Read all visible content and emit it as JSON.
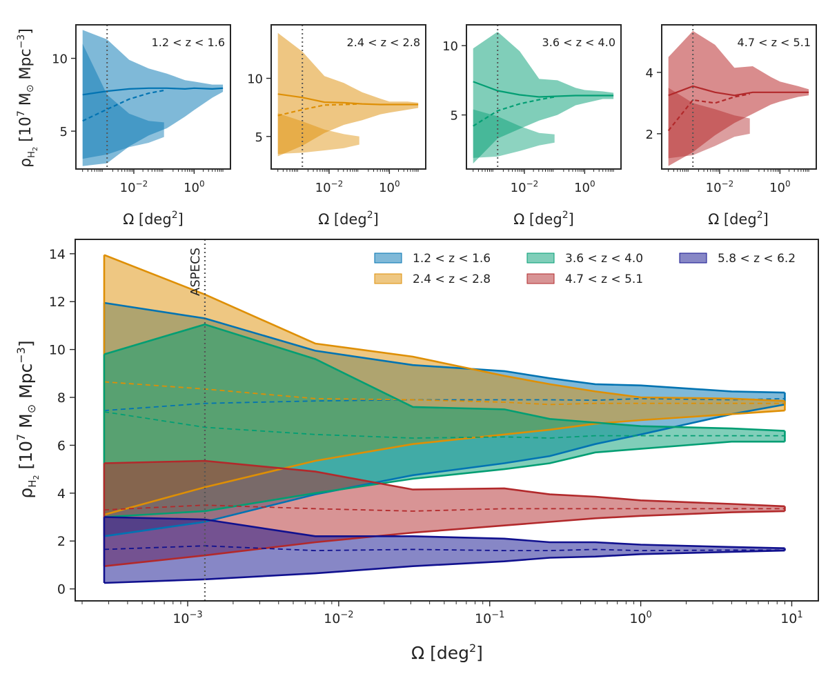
{
  "figure": {
    "shared": {
      "ylabel_main": "ρ",
      "ylabel_sub": "H",
      "ylabel_sub2": "2",
      "ylabel_rest": " [10",
      "ylabel_exp": "7",
      "ylabel_unit": " M",
      "ylabel_odot": "⊙",
      "ylabel_mpc": " Mpc",
      "ylabel_exp2": "−3",
      "ylabel_close": "]",
      "xlabel_main": "Ω [deg",
      "xlabel_exp": "2",
      "xlabel_close": "]",
      "tick_base": "10",
      "reference_label": "ASPECS"
    },
    "colors": {
      "z1": "#0173b2",
      "z1_fill": "#7fb9d8",
      "z2": "#de8f05",
      "z2_fill": "#eec682",
      "z3": "#029e73",
      "z3_fill": "#80ceb9",
      "z4": "#b2292b",
      "z4_fill": "#d98c8d",
      "z5": "#10108e",
      "z5_fill": "#7f7fc6",
      "reference_line": "#555555"
    }
  },
  "chart_data": [
    {
      "type": "area",
      "panel": "main",
      "title": "",
      "xlabel": "Ω [deg²]",
      "ylabel": "ρH2 [10^7 M⊙ Mpc^-3]",
      "xscale": "log",
      "xlim": [
        0.00018,
        15
      ],
      "ylim": [
        -0.5,
        14.6
      ],
      "xticks": [
        -3,
        -2,
        -1,
        0,
        1
      ],
      "yticks": [
        0,
        2,
        4,
        6,
        8,
        10,
        12,
        14
      ],
      "legend_position": "top-right",
      "reference_x": 0.0013,
      "reference_label": "ASPECS",
      "x": [
        0.00028,
        0.0013,
        0.007,
        0.031,
        0.125,
        0.25,
        0.5,
        1.0,
        4.0,
        9.0
      ],
      "series": [
        {
          "name": "1.2 < z < 1.6",
          "color_key": "z1",
          "upper": [
            11.95,
            11.3,
            9.95,
            9.35,
            9.1,
            8.8,
            8.55,
            8.5,
            8.25,
            8.2
          ],
          "lower": [
            2.2,
            2.8,
            3.95,
            4.75,
            5.25,
            5.55,
            6.05,
            6.45,
            7.3,
            7.7
          ],
          "median": [
            7.45,
            7.75,
            7.85,
            7.9,
            7.9,
            7.9,
            7.88,
            7.95,
            7.9,
            7.95
          ]
        },
        {
          "name": "2.4 < z < 2.8",
          "color_key": "z2",
          "upper": [
            13.95,
            12.3,
            10.25,
            9.7,
            8.9,
            8.55,
            8.25,
            8.0,
            7.95,
            7.85
          ],
          "lower": [
            3.1,
            4.25,
            5.35,
            6.05,
            6.45,
            6.65,
            6.9,
            7.05,
            7.3,
            7.45
          ],
          "median": [
            8.65,
            8.35,
            7.95,
            7.9,
            7.8,
            7.7,
            7.75,
            7.75,
            7.75,
            7.75
          ]
        },
        {
          "name": "3.6 < z < 4.0",
          "color_key": "z3",
          "upper": [
            9.8,
            11.05,
            9.6,
            7.6,
            7.5,
            7.1,
            6.95,
            6.8,
            6.7,
            6.6
          ],
          "lower": [
            3.0,
            3.25,
            4.0,
            4.6,
            5.0,
            5.25,
            5.7,
            5.85,
            6.15,
            6.15
          ],
          "median": [
            7.4,
            6.75,
            6.45,
            6.3,
            6.35,
            6.3,
            6.4,
            6.4,
            6.4,
            6.4
          ]
        },
        {
          "name": "4.7 < z < 5.1",
          "color_key": "z4",
          "upper": [
            5.25,
            5.35,
            4.9,
            4.15,
            4.2,
            3.95,
            3.85,
            3.7,
            3.55,
            3.45
          ],
          "lower": [
            0.95,
            1.4,
            1.95,
            2.35,
            2.65,
            2.8,
            2.95,
            3.05,
            3.2,
            3.25
          ],
          "median": [
            3.3,
            3.5,
            3.35,
            3.25,
            3.35,
            3.35,
            3.35,
            3.35,
            3.35,
            3.35
          ]
        },
        {
          "name": "5.8 < z < 6.2",
          "color_key": "z5",
          "upper": [
            3.0,
            2.9,
            2.2,
            2.2,
            2.1,
            1.95,
            1.95,
            1.85,
            1.75,
            1.7
          ],
          "lower": [
            0.25,
            0.4,
            0.65,
            0.95,
            1.15,
            1.3,
            1.35,
            1.45,
            1.55,
            1.6
          ],
          "median": [
            1.65,
            1.8,
            1.6,
            1.65,
            1.6,
            1.6,
            1.65,
            1.6,
            1.62,
            1.62
          ]
        }
      ]
    },
    {
      "type": "area",
      "panel": "inset",
      "title": "1.2 < z < 1.6",
      "color_key": "z1",
      "xscale": "log",
      "xlim": [
        0.00012,
        16
      ],
      "ylim": [
        2.4,
        12.3
      ],
      "yticks": [
        5,
        10
      ],
      "xticks": [
        -2,
        0
      ],
      "reference_x": 0.0013,
      "x": [
        0.0002,
        0.0013,
        0.007,
        0.031,
        0.125,
        0.5,
        1.0,
        4.0,
        9.0
      ],
      "upper": [
        11.95,
        11.3,
        9.9,
        9.3,
        8.95,
        8.5,
        8.4,
        8.2,
        8.2
      ],
      "lower": [
        2.6,
        2.8,
        3.95,
        4.7,
        5.2,
        6.0,
        6.45,
        7.3,
        7.7
      ],
      "median": [
        7.5,
        7.75,
        7.9,
        7.95,
        7.95,
        7.9,
        7.95,
        7.9,
        7.95
      ],
      "subset_x": [
        0.0002,
        0.0013,
        0.007,
        0.031,
        0.1
      ],
      "subset_upper": [
        11.0,
        7.5,
        6.2,
        5.7,
        5.6
      ],
      "subset_lower": [
        3.1,
        3.4,
        3.9,
        4.2,
        4.6
      ],
      "subset_median": [
        5.7,
        6.5,
        7.2,
        7.6,
        7.8
      ]
    },
    {
      "type": "area",
      "panel": "inset",
      "title": "2.4 < z < 2.8",
      "color_key": "z2",
      "xscale": "log",
      "xlim": [
        0.00012,
        16
      ],
      "ylim": [
        2.2,
        14.6
      ],
      "yticks": [
        5,
        10
      ],
      "xticks": [
        -2,
        0
      ],
      "reference_x": 0.0013,
      "x": [
        0.0002,
        0.0013,
        0.007,
        0.031,
        0.125,
        0.5,
        1.0,
        4.0,
        9.0
      ],
      "upper": [
        13.9,
        12.3,
        10.2,
        9.6,
        8.8,
        8.25,
        8.0,
        8.0,
        7.9
      ],
      "lower": [
        3.3,
        4.2,
        5.3,
        6.0,
        6.4,
        6.9,
        7.05,
        7.3,
        7.45
      ],
      "median": [
        8.65,
        8.35,
        7.95,
        7.9,
        7.8,
        7.75,
        7.75,
        7.75,
        7.75
      ],
      "subset_x": [
        0.0002,
        0.0013,
        0.007,
        0.031,
        0.1
      ],
      "subset_upper": [
        7.0,
        6.3,
        5.6,
        5.2,
        5.0
      ],
      "subset_lower": [
        3.5,
        3.6,
        3.8,
        4.0,
        4.3
      ],
      "subset_median": [
        6.8,
        7.3,
        7.7,
        7.75,
        7.8
      ]
    },
    {
      "type": "area",
      "panel": "inset",
      "title": "3.6 < z < 4.0",
      "color_key": "z3",
      "xscale": "log",
      "xlim": [
        0.00012,
        16
      ],
      "ylim": [
        1.1,
        11.5
      ],
      "yticks": [
        5,
        10
      ],
      "xticks": [
        -2,
        0
      ],
      "reference_x": 0.0013,
      "x": [
        0.0002,
        0.0013,
        0.007,
        0.031,
        0.125,
        0.5,
        1.0,
        4.0,
        9.0
      ],
      "upper": [
        9.8,
        11.0,
        9.6,
        7.6,
        7.5,
        6.95,
        6.8,
        6.7,
        6.6
      ],
      "lower": [
        1.5,
        3.3,
        4.0,
        4.6,
        5.0,
        5.7,
        5.85,
        6.15,
        6.15
      ],
      "median": [
        7.4,
        6.75,
        6.45,
        6.3,
        6.35,
        6.4,
        6.4,
        6.4,
        6.4
      ],
      "subset_x": [
        0.0002,
        0.0013,
        0.007,
        0.031,
        0.1
      ],
      "subset_upper": [
        5.4,
        4.9,
        4.2,
        3.7,
        3.6
      ],
      "subset_lower": [
        1.9,
        2.0,
        2.4,
        2.8,
        3.0
      ],
      "subset_median": [
        4.2,
        5.3,
        5.8,
        6.1,
        6.3
      ]
    },
    {
      "type": "area",
      "panel": "inset",
      "title": "4.7 < z < 5.1",
      "color_key": "z4",
      "xscale": "log",
      "xlim": [
        0.00012,
        16
      ],
      "ylim": [
        0.85,
        5.55
      ],
      "yticks": [
        2,
        4
      ],
      "xticks": [
        -2,
        0
      ],
      "reference_x": 0.0013,
      "x": [
        0.0002,
        0.0013,
        0.007,
        0.031,
        0.125,
        0.5,
        1.0,
        4.0,
        9.0
      ],
      "upper": [
        4.5,
        5.35,
        4.9,
        4.15,
        4.2,
        3.85,
        3.7,
        3.55,
        3.45
      ],
      "lower": [
        0.95,
        1.4,
        1.95,
        2.35,
        2.65,
        2.95,
        3.05,
        3.2,
        3.25
      ],
      "median": [
        3.25,
        3.55,
        3.35,
        3.25,
        3.35,
        3.35,
        3.35,
        3.35,
        3.35
      ],
      "subset_x": [
        0.0002,
        0.0013,
        0.007,
        0.031,
        0.1
      ],
      "subset_upper": [
        3.5,
        3.0,
        2.8,
        2.6,
        2.5
      ],
      "subset_lower": [
        1.2,
        1.3,
        1.6,
        1.9,
        2.0
      ],
      "subset_median": [
        2.1,
        3.1,
        3.0,
        3.2,
        3.3
      ]
    }
  ]
}
